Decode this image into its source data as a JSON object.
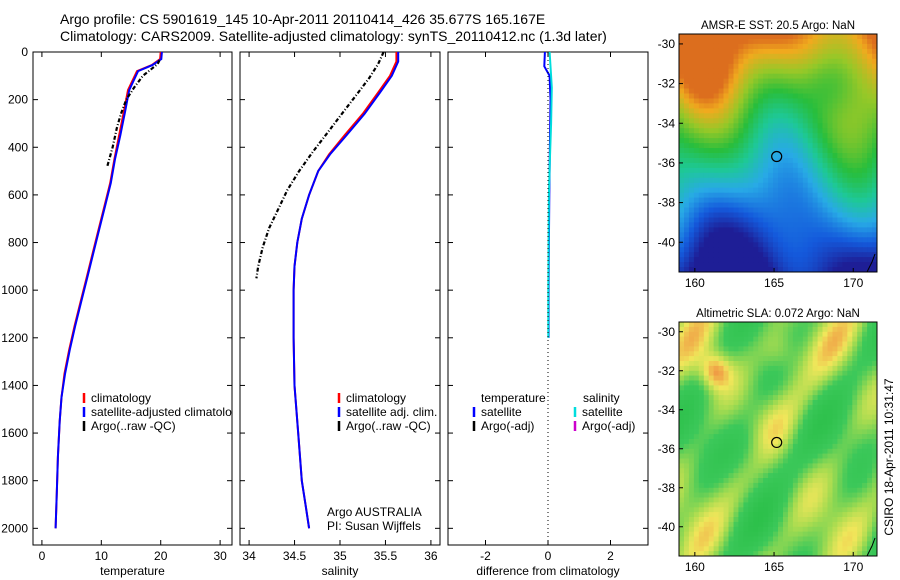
{
  "header": {
    "line1": "Argo profile: CS 5901619_145 10-Apr-2011 20110414_426 35.677S 165.167E",
    "line2": "Climatology: CARS2009. Satellite-adjusted climatology: synTS_20110412.nc (1.3d later)"
  },
  "side_label": "CSIRO 18-Apr-2011 10:31:47",
  "colors": {
    "climatology": "#ff0000",
    "satellite": "#0000ff",
    "argo": "#000000",
    "temp_diff_satellite": "#0000ff",
    "sal_diff_satellite": "#00dddd",
    "sal_diff_argo": "#cc00cc"
  },
  "chart_data": [
    {
      "type": "line",
      "name": "temperature panel",
      "xlabel": "temperature",
      "ylabel": "",
      "xlim": [
        -1.5,
        32
      ],
      "ylim": [
        2070,
        0
      ],
      "xticks": [
        0,
        10,
        20,
        30
      ],
      "yticks": [
        0,
        200,
        400,
        600,
        800,
        1000,
        1200,
        1400,
        1600,
        1800,
        2000
      ],
      "legend": {
        "position": "bottom-right",
        "entries": [
          {
            "label": "climatology",
            "color_key": "climatology"
          },
          {
            "label": "satellite-adjusted climatology",
            "color_key": "satellite"
          },
          {
            "label": "Argo(..raw -QC)",
            "color_key": "argo"
          }
        ]
      },
      "series": [
        {
          "name": "climatology",
          "color_key": "climatology",
          "dash": false,
          "x": [
            20.0,
            19.9,
            18.5,
            16.0,
            14.5,
            13.8,
            13.0,
            12.2,
            11.5,
            10.5,
            9.5,
            8.5,
            7.5,
            6.5,
            5.5,
            4.6,
            3.8,
            3.3,
            3.0,
            2.7,
            2.5,
            2.3
          ],
          "y": [
            0,
            30,
            55,
            80,
            160,
            250,
            350,
            450,
            550,
            650,
            750,
            850,
            950,
            1050,
            1150,
            1250,
            1350,
            1450,
            1550,
            1700,
            1850,
            2000
          ]
        },
        {
          "name": "satellite-adjusted climatology",
          "color_key": "satellite",
          "dash": false,
          "x": [
            20.2,
            20.1,
            18.6,
            16.2,
            14.7,
            14.0,
            13.2,
            12.3,
            11.6,
            10.6,
            9.6,
            8.6,
            7.6,
            6.6,
            5.6,
            4.7,
            3.9,
            3.3,
            3.0,
            2.7,
            2.5,
            2.3
          ],
          "y": [
            0,
            30,
            55,
            80,
            160,
            250,
            350,
            450,
            550,
            650,
            750,
            850,
            950,
            1050,
            1150,
            1250,
            1350,
            1450,
            1550,
            1700,
            1850,
            2000
          ]
        },
        {
          "name": "Argo(..raw -QC)",
          "color_key": "argo",
          "dash": true,
          "x": [
            19.8,
            19.5,
            18.5,
            17.0,
            15.5,
            14.2,
            13.3,
            12.6,
            11.9,
            11.0
          ],
          "y": [
            35,
            50,
            70,
            100,
            150,
            200,
            260,
            320,
            400,
            480
          ]
        }
      ]
    },
    {
      "type": "line",
      "name": "salinity panel",
      "xlabel": "salinity",
      "ylabel": "",
      "xlim": [
        33.9,
        36.1
      ],
      "ylim": [
        2070,
        0
      ],
      "xticks": [
        34,
        34.5,
        35,
        35.5,
        36
      ],
      "legend": {
        "position": "bottom-right",
        "entries": [
          {
            "label": "climatology",
            "color_key": "climatology"
          },
          {
            "label": "satellite adj. clim.",
            "color_key": "satellite"
          },
          {
            "label": "Argo(..raw -QC)",
            "color_key": "argo"
          }
        ]
      },
      "annotation": [
        "Argo AUSTRALIA",
        "PI: Susan Wijffels"
      ],
      "series": [
        {
          "name": "climatology",
          "color_key": "climatology",
          "dash": false,
          "x": [
            35.62,
            35.62,
            35.55,
            35.42,
            35.25,
            35.05,
            34.88,
            34.76,
            34.66,
            34.58,
            34.53,
            34.5,
            34.49,
            34.49,
            34.5,
            34.54,
            34.58,
            34.62,
            34.66
          ],
          "y": [
            0,
            40,
            100,
            170,
            260,
            350,
            430,
            500,
            600,
            700,
            800,
            900,
            1000,
            1200,
            1400,
            1600,
            1800,
            1900,
            2000
          ]
        },
        {
          "name": "satellite adj. clim.",
          "color_key": "satellite",
          "dash": false,
          "x": [
            35.64,
            35.64,
            35.57,
            35.44,
            35.27,
            35.07,
            34.89,
            34.76,
            34.66,
            34.58,
            34.53,
            34.5,
            34.49,
            34.49,
            34.5,
            34.54,
            34.58,
            34.62,
            34.66
          ],
          "y": [
            0,
            40,
            100,
            170,
            260,
            350,
            430,
            500,
            600,
            700,
            800,
            900,
            1000,
            1200,
            1400,
            1600,
            1800,
            1900,
            2000
          ]
        },
        {
          "name": "Argo(..raw -QC)",
          "color_key": "argo",
          "dash": true,
          "x": [
            35.48,
            35.42,
            35.32,
            35.18,
            35.02,
            34.86,
            34.7,
            34.55,
            34.42,
            34.32,
            34.22,
            34.15,
            34.1,
            34.08
          ],
          "y": [
            0,
            50,
            110,
            180,
            260,
            340,
            420,
            500,
            580,
            660,
            740,
            820,
            900,
            950
          ]
        }
      ]
    },
    {
      "type": "line",
      "name": "difference panel",
      "xlabel": "difference from climatology",
      "ylabel": "",
      "xlim": [
        -3.2,
        3.2
      ],
      "ylim": [
        2070,
        0
      ],
      "xticks": [
        -2,
        0,
        2
      ],
      "legend": {
        "position": "bottom",
        "columns": [
          {
            "heading": "temperature",
            "entries": [
              {
                "label": "satellite",
                "color_key": "temp_diff_satellite"
              },
              {
                "label": "Argo(-adj)",
                "color_key": "argo"
              }
            ]
          },
          {
            "heading": "salinity",
            "entries": [
              {
                "label": "satellite",
                "color_key": "sal_diff_satellite"
              },
              {
                "label": "Argo(-adj)",
                "color_key": "sal_diff_argo"
              }
            ]
          }
        ]
      },
      "series": [
        {
          "name": "temperature satellite",
          "color_key": "temp_diff_satellite",
          "x": [
            -0.1,
            -0.12,
            0.05,
            0.08,
            0.06,
            0.04,
            0.03,
            0.02,
            0.02,
            0.02
          ],
          "y": [
            0,
            60,
            100,
            200,
            400,
            600,
            800,
            1000,
            1100,
            1200
          ]
        },
        {
          "name": "salinity satellite",
          "color_key": "sal_diff_satellite",
          "x": [
            0.05,
            0.08,
            0.12,
            0.1,
            0.06,
            0.03,
            0.02,
            0.01,
            0.01,
            0.01
          ],
          "y": [
            0,
            60,
            150,
            300,
            450,
            600,
            800,
            1000,
            1100,
            1200
          ]
        }
      ]
    },
    {
      "type": "heatmap",
      "name": "sst map",
      "title": "AMSR-E SST: 20.5 Argo: NaN",
      "xlim": [
        159,
        171.5
      ],
      "ylim": [
        -41.5,
        -29.5
      ],
      "xticks": [
        160,
        165,
        170
      ],
      "yticks": [
        -30,
        -32,
        -34,
        -36,
        -38,
        -40
      ],
      "marker": {
        "lon": 165.167,
        "lat": -35.677
      }
    },
    {
      "type": "heatmap",
      "name": "sla map",
      "title": "Altimetric SLA: 0.072 Argo: NaN",
      "xlim": [
        159,
        171.5
      ],
      "ylim": [
        -41.5,
        -29.5
      ],
      "xticks": [
        160,
        165,
        170
      ],
      "yticks": [
        -30,
        -32,
        -34,
        -36,
        -38,
        -40
      ],
      "marker": {
        "lon": 165.167,
        "lat": -35.677
      }
    }
  ]
}
